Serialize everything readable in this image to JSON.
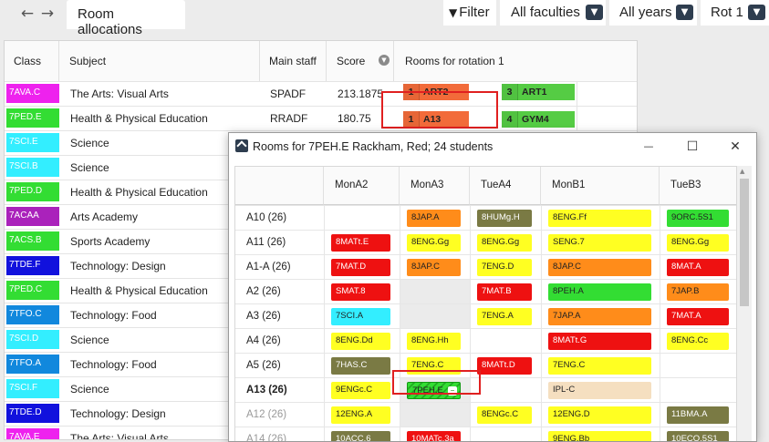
{
  "topbar": {
    "back": "←",
    "forward": "→",
    "tab_label": "Room allocations",
    "filter_label": "Filter",
    "faculty_value": "All faculties",
    "years_value": "All years",
    "rotation_value": "Rot 1",
    "chevron": "▼"
  },
  "table": {
    "headers": {
      "class": "Class",
      "subject": "Subject",
      "staff": "Main staff",
      "score": "Score",
      "rooms": "Rooms for rotation 1"
    },
    "rows": [
      {
        "class": "7AVA.C",
        "color": "#ee22ee",
        "subject": "The Arts: Visual Arts",
        "staff": "SPADF",
        "score": "213.1875",
        "rooms": [
          {
            "n": "1",
            "room": "ART2",
            "color": "#f26b3a"
          },
          {
            "n": "3",
            "room": "ART1",
            "color": "#55cc44"
          }
        ]
      },
      {
        "class": "7PED.E",
        "color": "#33dd33",
        "subject": "Health & Physical Education",
        "staff": "RRADF",
        "score": "180.75",
        "rooms": [
          {
            "n": "1",
            "room": "A13",
            "color": "#f26b3a"
          },
          {
            "n": "4",
            "room": "GYM4",
            "color": "#55cc44"
          }
        ]
      },
      {
        "class": "7SCI.E",
        "color": "#33eeff",
        "subject": "Science"
      },
      {
        "class": "7SCI.B",
        "color": "#33eeff",
        "subject": "Science"
      },
      {
        "class": "7PED.D",
        "color": "#33dd33",
        "subject": "Health & Physical Education"
      },
      {
        "class": "7ACAA",
        "color": "#aa22bb",
        "subject": "Arts Academy"
      },
      {
        "class": "7ACS.B",
        "color": "#33dd33",
        "subject": "Sports Academy"
      },
      {
        "class": "7TDE.F",
        "color": "#1111dd",
        "subject": "Technology: Design"
      },
      {
        "class": "7PED.C",
        "color": "#33dd33",
        "subject": "Health & Physical Education"
      },
      {
        "class": "7TFO.C",
        "color": "#1188dd",
        "subject": "Technology: Food"
      },
      {
        "class": "7SCI.D",
        "color": "#33eeff",
        "subject": "Science"
      },
      {
        "class": "7TFO.A",
        "color": "#1188dd",
        "subject": "Technology: Food"
      },
      {
        "class": "7SCI.F",
        "color": "#33eeff",
        "subject": "Science"
      },
      {
        "class": "7TDE.D",
        "color": "#1111dd",
        "subject": "Technology: Design"
      },
      {
        "class": "7AVA.E",
        "color": "#ee22ee",
        "subject": "The Arts: Visual Arts"
      }
    ]
  },
  "dialog": {
    "title": "Rooms for 7PEH.E Rackham, Red; 24 students",
    "minimize": "—",
    "maximize": "☐",
    "close": "✕",
    "columns": [
      "MonA2",
      "MonA3",
      "TueA4",
      "MonB1",
      "TueB3"
    ],
    "rows": [
      {
        "label": "A10 (26)",
        "cells": [
          null,
          {
            "t": "8JAP.A",
            "c": "#ff8c1a"
          },
          {
            "t": "8HUMg.H",
            "c": "#7a7a44",
            "fg": "#fff"
          },
          {
            "t": "8ENG.Ff",
            "c": "#ffff22"
          },
          {
            "t": "9ORC.5S1",
            "c": "#33dd33"
          }
        ]
      },
      {
        "label": "A11 (26)",
        "cells": [
          {
            "t": "8MATt.E",
            "c": "#ee1111",
            "fg": "#fff"
          },
          {
            "t": "8ENG.Gg",
            "c": "#ffff22"
          },
          {
            "t": "8ENG.Gg",
            "c": "#ffff22"
          },
          {
            "t": "SENG.7",
            "c": "#ffff22"
          },
          {
            "t": "8ENG.Gg",
            "c": "#ffff22"
          }
        ]
      },
      {
        "label": "A1-A (26)",
        "cells": [
          {
            "t": "7MAT.D",
            "c": "#ee1111",
            "fg": "#fff"
          },
          {
            "t": "8JAP.C",
            "c": "#ff8c1a"
          },
          {
            "t": "7ENG.D",
            "c": "#ffff22"
          },
          {
            "t": "8JAP.C",
            "c": "#ff8c1a"
          },
          {
            "t": "8MAT.A",
            "c": "#ee1111",
            "fg": "#fff"
          }
        ]
      },
      {
        "label": "A2 (26)",
        "cells": [
          {
            "t": "SMAT.8",
            "c": "#ee1111",
            "fg": "#fff"
          },
          null,
          {
            "t": "7MAT.B",
            "c": "#ee1111",
            "fg": "#fff"
          },
          {
            "t": "8PEH.A",
            "c": "#33dd33"
          },
          {
            "t": "7JAP.B",
            "c": "#ff8c1a"
          }
        ]
      },
      {
        "label": "A3 (26)",
        "cells": [
          {
            "t": "7SCI.A",
            "c": "#33eeff"
          },
          null,
          {
            "t": "7ENG.A",
            "c": "#ffff22"
          },
          {
            "t": "7JAP.A",
            "c": "#ff8c1a"
          },
          {
            "t": "7MAT.A",
            "c": "#ee1111",
            "fg": "#fff"
          }
        ]
      },
      {
        "label": "A4 (26)",
        "cells": [
          {
            "t": "8ENG.Dd",
            "c": "#ffff22"
          },
          {
            "t": "8ENG.Hh",
            "c": "#ffff22"
          },
          null,
          {
            "t": "8MATt.G",
            "c": "#ee1111",
            "fg": "#fff"
          },
          {
            "t": "8ENG.Cc",
            "c": "#ffff22"
          }
        ]
      },
      {
        "label": "A5 (26)",
        "cells": [
          {
            "t": "7HAS.C",
            "c": "#7a7a44",
            "fg": "#fff"
          },
          {
            "t": "7ENG.C",
            "c": "#ffff22"
          },
          {
            "t": "8MATt.D",
            "c": "#ee1111",
            "fg": "#fff"
          },
          {
            "t": "7ENG.C",
            "c": "#ffff22"
          },
          null
        ]
      },
      {
        "label": "A13 (26)",
        "bold": true,
        "cells": [
          {
            "t": "9ENGc.C",
            "c": "#ffff22"
          },
          {
            "t": "7PEH.E",
            "c": "#33dd33",
            "hatched": true
          },
          null,
          {
            "t": "IPL-C",
            "c": "#f5dfc0"
          },
          null
        ]
      },
      {
        "label": "A12 (26)",
        "muted": true,
        "cells": [
          {
            "t": "12ENG.A",
            "c": "#ffff22"
          },
          null,
          {
            "t": "8ENGc.C",
            "c": "#ffff22"
          },
          {
            "t": "12ENG.D",
            "c": "#ffff22"
          },
          {
            "t": "11BMA.A",
            "c": "#7a7a44",
            "fg": "#fff"
          }
        ]
      },
      {
        "label": "A14 (26)",
        "muted": true,
        "cells": [
          {
            "t": "10ACC.6",
            "c": "#7a7a44",
            "fg": "#fff"
          },
          {
            "t": "10MATc.3a",
            "c": "#ee1111",
            "fg": "#fff"
          },
          null,
          {
            "t": "9ENG.Bb",
            "c": "#ffff22"
          },
          {
            "t": "10ECO.5S1",
            "c": "#7a7a44",
            "fg": "#fff"
          }
        ]
      }
    ]
  },
  "colors": {
    "highlight": "#e02020",
    "navy": "#2e3d4f"
  }
}
